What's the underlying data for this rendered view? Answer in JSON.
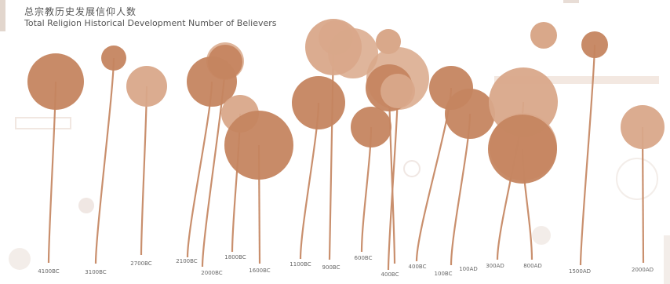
{
  "title": "总宗教历史发展信仰人数",
  "subtitle": "Total Religion Historical Development Number of Believers",
  "colors": {
    "stem": "#c98f6d",
    "bubble": "#c58560",
    "bubble_light": "#d9a88a"
  },
  "chart_data": {
    "type": "bubble-timeline",
    "title": "总宗教历史发展信仰人数",
    "subtitle": "Total Religion Historical Development Number of Believers",
    "labels": [
      "4100BC",
      "3100BC",
      "2700BC",
      "2100BC",
      "2000BC",
      "1800BC",
      "1600BC",
      "1100BC",
      "900BC",
      "600BC",
      "400BC",
      "400BC",
      "100BC",
      "100AD",
      "300AD",
      "800AD",
      "1500AD",
      "2000AD"
    ],
    "sizes": [
      36,
      16,
      26,
      32,
      22,
      24,
      44,
      34,
      36,
      26,
      30,
      22,
      28,
      32,
      44,
      44,
      17,
      28
    ]
  }
}
